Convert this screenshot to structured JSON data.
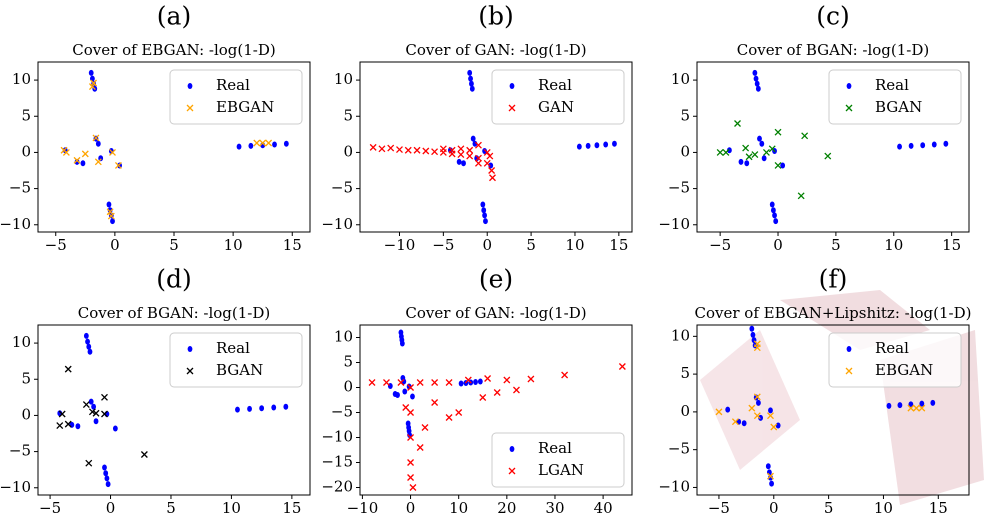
{
  "chart_data": [
    {
      "type": "scatter",
      "label": "(a)",
      "title": "Cover of EBGAN: -log(1-D)",
      "legend": "upper right",
      "xlim": [
        -6.5,
        16.5
      ],
      "ylim": [
        -11,
        12.5
      ],
      "xticks": [
        {
          "value": -5,
          "label": "−5"
        },
        0,
        5,
        10,
        15
      ],
      "yticks": [
        {
          "value": -10,
          "label": "−10"
        },
        {
          "value": -5,
          "label": "−5"
        },
        0,
        5,
        10
      ],
      "series": [
        {
          "name": "Real",
          "color": "#0000ff",
          "marker": "o",
          "x": [
            -2,
            -1.9,
            -1.8,
            -1.7,
            -0.5,
            -0.4,
            -0.3,
            -0.2,
            10.5,
            11.5,
            12.5,
            13.5,
            14.5,
            -4.2,
            -3.2,
            -2.7,
            -1.6,
            -1.4,
            -1.2,
            -0.3,
            0.4
          ],
          "values": [
            11,
            10.2,
            9.5,
            8.8,
            -7.2,
            -8,
            -8.7,
            -9.5,
            0.8,
            0.9,
            1,
            1.1,
            1.2,
            0.3,
            -1.3,
            -1.5,
            1.9,
            1.2,
            -0.8,
            0.2,
            -1.8
          ]
        },
        {
          "name": "EBGAN",
          "color": "#ffa500",
          "marker": "x",
          "x": [
            -1.8,
            -1.9,
            -4.3,
            -4.1,
            -3.2,
            -2.5,
            -1.6,
            -1.4,
            -0.2,
            0.3,
            -0.4,
            -0.3,
            12,
            12.5,
            13
          ],
          "values": [
            9.6,
            9.1,
            0.3,
            0,
            -1.1,
            -0.2,
            2,
            -1.3,
            0,
            -1.8,
            -8.2,
            -8.8,
            1.3,
            1.3,
            1.3
          ]
        }
      ]
    },
    {
      "type": "scatter",
      "label": "(b)",
      "title": "Cover of GAN: -log(1-D)",
      "legend": "upper right",
      "xlim": [
        -14.5,
        16.5
      ],
      "ylim": [
        -11,
        12.5
      ],
      "xticks": [
        {
          "value": -10,
          "label": "−10"
        },
        {
          "value": -5,
          "label": "−5"
        },
        0,
        5,
        10,
        15
      ],
      "yticks": [
        {
          "value": -10,
          "label": "−10"
        },
        {
          "value": -5,
          "label": "−5"
        },
        0,
        5,
        10
      ],
      "series": [
        {
          "name": "Real",
          "color": "#0000ff",
          "marker": "o",
          "x": [
            -2,
            -1.9,
            -1.8,
            -1.7,
            -0.5,
            -0.4,
            -0.3,
            -0.2,
            10.5,
            11.5,
            12.5,
            13.5,
            14.5,
            -4.2,
            -3.2,
            -2.7,
            -1.6,
            -1.4,
            -1.2,
            -0.3,
            0.4
          ],
          "values": [
            11,
            10.2,
            9.5,
            8.8,
            -7.2,
            -8,
            -8.7,
            -9.5,
            0.8,
            0.9,
            1,
            1.1,
            1.2,
            0.3,
            -1.3,
            -1.5,
            1.9,
            1.2,
            -0.8,
            0.2,
            -1.8
          ]
        },
        {
          "name": "GAN",
          "color": "#ff0000",
          "marker": "x",
          "x": [
            -13,
            -12,
            -11,
            -10,
            -9,
            -8,
            -7,
            -6,
            -5,
            -4,
            -3,
            -2,
            -1,
            0,
            0.5,
            0.6,
            -1,
            -5,
            -3,
            -1,
            0,
            0.3,
            -2,
            -4
          ],
          "values": [
            0.7,
            0.5,
            0.6,
            0.4,
            0.3,
            0.3,
            0.2,
            0.1,
            0,
            -0.2,
            -0.3,
            -0.5,
            -0.8,
            -1.5,
            -2.5,
            -3.5,
            -1.5,
            0.5,
            0.5,
            1,
            0,
            -0.5,
            0.3,
            0.3
          ]
        }
      ]
    },
    {
      "type": "scatter",
      "label": "(c)",
      "title": "Cover of BGAN: -log(1-D)",
      "legend": "upper right",
      "xlim": [
        -7,
        16.5
      ],
      "ylim": [
        -11,
        12.5
      ],
      "xticks": [
        {
          "value": -5,
          "label": "−5"
        },
        0,
        5,
        10,
        15
      ],
      "yticks": [
        {
          "value": -10,
          "label": "−10"
        },
        {
          "value": -5,
          "label": "−5"
        },
        0,
        5,
        10
      ],
      "series": [
        {
          "name": "Real",
          "color": "#0000ff",
          "marker": "o",
          "x": [
            -2,
            -1.9,
            -1.8,
            -1.7,
            -0.5,
            -0.4,
            -0.3,
            -0.2,
            10.5,
            11.5,
            12.5,
            13.5,
            14.5,
            -4.2,
            -3.2,
            -2.7,
            -1.6,
            -1.4,
            -1.2,
            -0.3,
            0.4
          ],
          "values": [
            11,
            10.2,
            9.5,
            8.8,
            -7.2,
            -8,
            -8.7,
            -9.5,
            0.8,
            0.9,
            1,
            1.1,
            1.2,
            0.3,
            -1.3,
            -1.5,
            1.9,
            1.2,
            -0.8,
            0.2,
            -1.8
          ]
        },
        {
          "name": "BGAN",
          "color": "#008000",
          "marker": "x",
          "x": [
            -5,
            -4.5,
            -3.5,
            -2.8,
            -2.5,
            -2,
            -0.5,
            0,
            0,
            2,
            2.3,
            4.3,
            -1
          ],
          "values": [
            0,
            0,
            4,
            0.6,
            -0.6,
            -0.3,
            0.5,
            2.8,
            -1.8,
            -6,
            2.3,
            -0.5,
            0
          ]
        }
      ]
    },
    {
      "type": "scatter",
      "label": "(d)",
      "title": "Cover of BGAN: -log(1-D)",
      "legend": "upper right",
      "xlim": [
        -6,
        16.5
      ],
      "ylim": [
        -11,
        12.5
      ],
      "xticks": [
        {
          "value": -5,
          "label": "−5"
        },
        0,
        5,
        10,
        15
      ],
      "yticks": [
        {
          "value": -10,
          "label": "−10"
        },
        {
          "value": -5,
          "label": "−5"
        },
        0,
        5,
        10
      ],
      "series": [
        {
          "name": "Real",
          "color": "#0000ff",
          "marker": "o",
          "x": [
            -2,
            -1.9,
            -1.8,
            -1.7,
            -0.5,
            -0.4,
            -0.3,
            -0.2,
            10.5,
            11.5,
            12.5,
            13.5,
            14.5,
            -4.2,
            -3.2,
            -2.7,
            -1.6,
            -1.4,
            -1.2,
            -0.3,
            0.4
          ],
          "values": [
            11,
            10.2,
            9.5,
            8.8,
            -7.2,
            -8,
            -8.7,
            -9.5,
            0.8,
            0.9,
            1,
            1.1,
            1.2,
            0.3,
            -1.3,
            -1.5,
            1.9,
            1.2,
            -0.8,
            0.2,
            -1.8
          ]
        },
        {
          "name": "BGAN",
          "color": "#000000",
          "marker": "x",
          "x": [
            -3.5,
            -4,
            -4.2,
            -3.5,
            -2,
            -1.5,
            -1.2,
            -0.5,
            -0.5,
            -1.8,
            2.8
          ],
          "values": [
            6.4,
            0.2,
            -1.4,
            -1.2,
            1.5,
            0.5,
            0.3,
            2.5,
            0.2,
            -6.6,
            -5.4
          ]
        }
      ]
    },
    {
      "type": "scatter",
      "label": "(e)",
      "title": "Cover of GAN: -log(1-D)",
      "legend": "lower right",
      "xlim": [
        -10.5,
        46
      ],
      "ylim": [
        -21.5,
        12.5
      ],
      "xticks": [
        {
          "value": -10,
          "label": "−10"
        },
        0,
        10,
        20,
        30,
        40
      ],
      "yticks": [
        {
          "value": -20,
          "label": "−20"
        },
        {
          "value": -15,
          "label": "−15"
        },
        {
          "value": -10,
          "label": "−10"
        },
        {
          "value": -5,
          "label": "−5"
        },
        0,
        5,
        10
      ],
      "series": [
        {
          "name": "Real",
          "color": "#0000ff",
          "marker": "o",
          "x": [
            -2,
            -1.9,
            -1.8,
            -1.7,
            -0.5,
            -0.4,
            -0.3,
            -0.2,
            10.5,
            11.5,
            12.5,
            13.5,
            14.5,
            -4.2,
            -3.2,
            -2.7,
            -1.6,
            -1.4,
            -1.2,
            -0.3,
            0.4
          ],
          "values": [
            11,
            10.2,
            9.5,
            8.8,
            -7.2,
            -8,
            -8.7,
            -9.5,
            0.8,
            0.9,
            1,
            1.1,
            1.2,
            0.3,
            -1.3,
            -1.5,
            1.9,
            1.2,
            -0.8,
            0.2,
            -1.8
          ]
        },
        {
          "name": "LGAN",
          "color": "#ff0000",
          "marker": "x",
          "x": [
            -8,
            -5,
            -2,
            0,
            2,
            5,
            8,
            12,
            16,
            20,
            25,
            32,
            44,
            22,
            0,
            0,
            0,
            0,
            0.5,
            5,
            8,
            10,
            3,
            2,
            -1,
            15,
            18
          ],
          "values": [
            1,
            1,
            1,
            0,
            1,
            1,
            1,
            1.5,
            1.8,
            1.5,
            1.7,
            2.5,
            4.2,
            -0.5,
            -5,
            -10,
            -15,
            -18,
            -20,
            -3,
            -6,
            -5,
            -8,
            -12,
            -4,
            -2,
            -1
          ]
        }
      ]
    },
    {
      "type": "scatter",
      "label": "(f)",
      "title": "Cover of EBGAN+Lipshitz: -log(1-D)",
      "legend": "upper right",
      "xlim": [
        -7,
        17.8
      ],
      "ylim": [
        -11,
        11.5
      ],
      "xticks": [
        {
          "value": -5,
          "label": "−5"
        },
        0,
        5,
        10,
        15
      ],
      "yticks": [
        {
          "value": -10,
          "label": "−10"
        },
        {
          "value": -5,
          "label": "−5"
        },
        0,
        5,
        10
      ],
      "series": [
        {
          "name": "Real",
          "color": "#0000ff",
          "marker": "o",
          "x": [
            -2,
            -1.9,
            -1.8,
            -1.7,
            -0.5,
            -0.4,
            -0.3,
            -0.2,
            10.5,
            11.5,
            12.5,
            13.5,
            14.5,
            -4.2,
            -3.2,
            -2.7,
            -1.6,
            -1.4,
            -1.2,
            -0.3,
            0.4
          ],
          "values": [
            11,
            10.2,
            9.5,
            8.8,
            -7.2,
            -8,
            -8.7,
            -9.5,
            0.8,
            0.9,
            1,
            1.1,
            1.2,
            0.3,
            -1.3,
            -1.5,
            1.9,
            1.2,
            -0.8,
            0.2,
            -1.8
          ]
        },
        {
          "name": "EBGAN",
          "color": "#ffa500",
          "marker": "x",
          "x": [
            -1.5,
            -1.5,
            -5,
            -3.5,
            -2,
            -1.5,
            -1.5,
            -0.3,
            0,
            -0.3,
            12.5,
            13.5,
            13
          ],
          "values": [
            9,
            8.5,
            0,
            -1.3,
            0.5,
            2,
            -0.5,
            -0.5,
            -2,
            -8.5,
            0.5,
            0.5,
            0.5
          ]
        }
      ]
    }
  ]
}
